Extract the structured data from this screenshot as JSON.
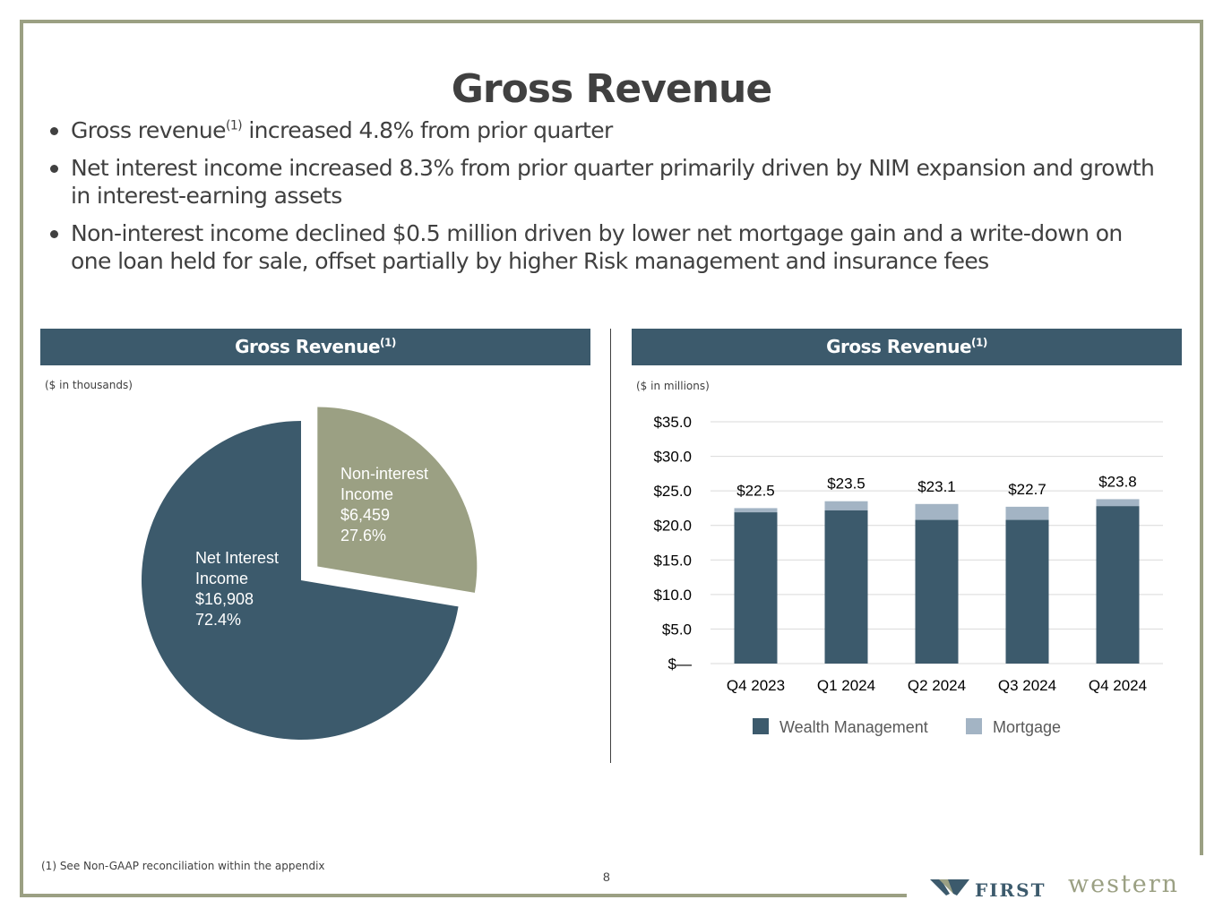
{
  "slide": {
    "title": "Gross Revenue",
    "page_number": "8",
    "footnote": "(1)  See Non-GAAP reconciliation within the appendix",
    "bullets": [
      {
        "text": "Gross revenue",
        "sup": "(1)",
        "rest": " increased  4.8% from prior quarter"
      },
      {
        "text": "Net interest income increased 8.3% from prior quarter primarily driven by NIM expansion and growth in interest-earning assets",
        "sup": "",
        "rest": ""
      },
      {
        "text": "Non-interest income declined $0.5 million driven by lower net mortgage gain and a write-down on one loan held for sale, offset partially by higher Risk management and insurance fees",
        "sup": "",
        "rest": ""
      }
    ],
    "frame_color": "#9ba083",
    "header_color": "#3c5a6c"
  },
  "left_panel": {
    "header": "Gross Revenue",
    "header_sup": "(1)",
    "units": "($ in thousands)"
  },
  "right_panel": {
    "header": "Gross Revenue",
    "header_sup": "(1)",
    "units": "($ in millions)"
  },
  "logo": {
    "first": "FIRST",
    "western": "western",
    "icon": "w-chevron-icon"
  },
  "chart_data": [
    {
      "type": "pie",
      "slices": [
        {
          "label_lines": [
            "Non-interest",
            "Income",
            "$6,459",
            "27.6%"
          ],
          "value": 6459,
          "percent": 27.6,
          "color": "#9ba083",
          "exploded": true
        },
        {
          "label_lines": [
            "Net Interest",
            "Income",
            "$16,908",
            "72.4%"
          ],
          "value": 16908,
          "percent": 72.4,
          "color": "#3c5a6c",
          "exploded": false
        }
      ]
    },
    {
      "type": "bar",
      "stacked": true,
      "categories": [
        "Q4 2023",
        "Q1 2024",
        "Q2 2024",
        "Q3 2024",
        "Q4 2024"
      ],
      "series": [
        {
          "name": "Wealth Management",
          "color": "#3c5a6c",
          "values": [
            21.9,
            22.2,
            20.8,
            20.8,
            22.8
          ]
        },
        {
          "name": "Mortgage",
          "color": "#a3b4c4",
          "values": [
            0.6,
            1.3,
            2.3,
            1.9,
            1.0
          ]
        }
      ],
      "totals": [
        "$22.5",
        "$23.5",
        "$23.1",
        "$22.7",
        "$23.8"
      ],
      "y_ticks": [
        "$—",
        "$5.0",
        "$10.0",
        "$15.0",
        "$20.0",
        "$25.0",
        "$30.0",
        "$35.0"
      ],
      "ylim": [
        0,
        35
      ],
      "grid": true,
      "legend_position": "bottom"
    }
  ]
}
